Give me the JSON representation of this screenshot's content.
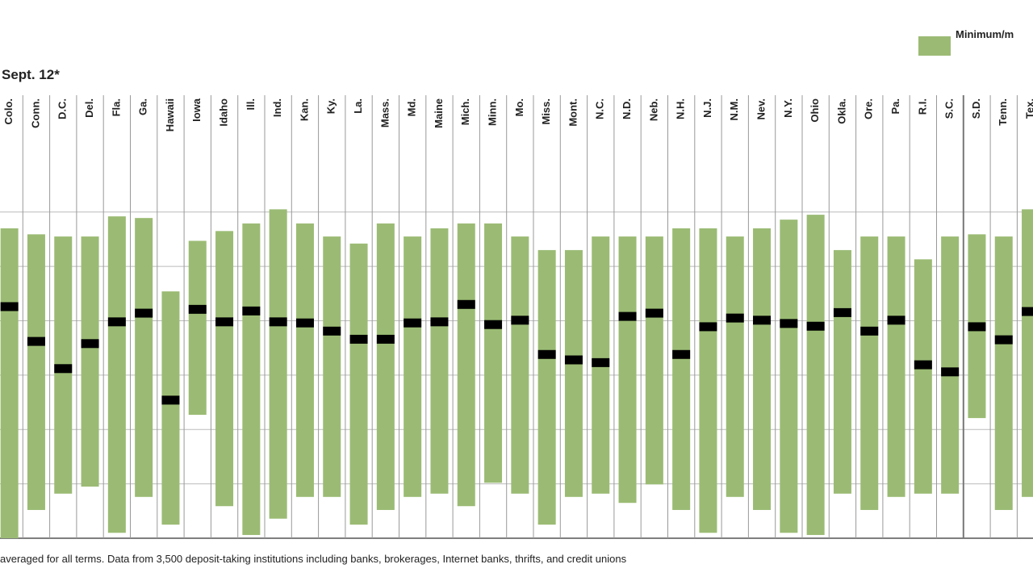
{
  "chart_data": {
    "type": "range-bar",
    "subtitle": "Sept. 12*",
    "legend_label": "Minimum/m",
    "footnote": "averaged for all terms. Data from 3,500 deposit-taking institutions including banks, brokerages, Internet banks, thrifts, and credit unions",
    "color": "#9bbb74",
    "average_color": "#000000",
    "ylim": [
      0,
      8
    ],
    "gridlines": [
      1,
      2,
      3,
      4,
      5,
      6
    ],
    "categories": [
      "Colo.",
      "Conn.",
      "D.C.",
      "Del.",
      "Fla.",
      "Ga.",
      "Hawaii",
      "Iowa",
      "Idaho",
      "Ill.",
      "Ind.",
      "Kan.",
      "Ky.",
      "La.",
      "Mass.",
      "Md.",
      "Maine",
      "Mich.",
      "Minn.",
      "Mo.",
      "Miss.",
      "Mont.",
      "N.C.",
      "N.D.",
      "Neb.",
      "N.H.",
      "N.J.",
      "N.M.",
      "Nev.",
      "N.Y.",
      "Ohio",
      "Okla.",
      "Ore.",
      "Pa.",
      "R.I.",
      "S.C.",
      "S.D.",
      "Tenn.",
      "Tex."
    ],
    "min": [
      0,
      0.52,
      0.82,
      0.95,
      0.1,
      0.76,
      0.25,
      2.27,
      0.59,
      0.06,
      0.36,
      0.76,
      0.76,
      0.25,
      0.52,
      0.76,
      0.82,
      0.59,
      1.02,
      0.82,
      0.25,
      0.76,
      0.82,
      0.65,
      0.99,
      0.52,
      0.1,
      0.76,
      0.52,
      0.1,
      0.06,
      0.82,
      0.52,
      0.76,
      0.82,
      0.82,
      2.21,
      0.52,
      0.76
    ],
    "max": [
      5.7,
      5.59,
      5.55,
      5.55,
      5.92,
      5.89,
      4.54,
      5.47,
      5.65,
      5.79,
      6.05,
      5.79,
      5.55,
      5.42,
      5.79,
      5.55,
      5.7,
      5.79,
      5.79,
      5.55,
      5.3,
      5.3,
      5.55,
      5.55,
      5.55,
      5.7,
      5.7,
      5.55,
      5.7,
      5.86,
      5.95,
      5.3,
      5.55,
      5.55,
      5.13,
      5.55,
      5.59,
      5.55,
      6.05
    ],
    "average": [
      4.26,
      3.62,
      3.12,
      3.58,
      3.98,
      4.14,
      2.54,
      4.21,
      3.98,
      4.18,
      3.98,
      3.96,
      3.81,
      3.66,
      3.66,
      3.96,
      3.98,
      4.3,
      3.93,
      4.01,
      3.38,
      3.28,
      3.23,
      4.08,
      4.14,
      3.38,
      3.89,
      4.05,
      4.01,
      3.95,
      3.9,
      4.15,
      3.81,
      4.01,
      3.19,
      3.06,
      3.89,
      3.65,
      4.17
    ]
  }
}
